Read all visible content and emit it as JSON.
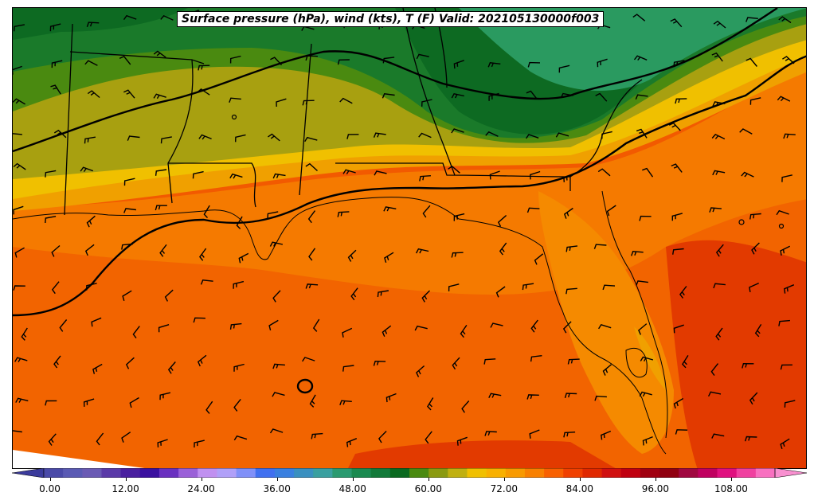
{
  "title": "Surface pressure (hPa), wind (kts), T (F) Valid: 202105130000f003",
  "colorbar": {
    "tick_labels": [
      "0.00",
      "12.00",
      "24.00",
      "36.00",
      "48.00",
      "60.00",
      "72.00",
      "84.00",
      "96.00",
      "108.00"
    ],
    "colors": [
      "#3b3b9c",
      "#4a4aa8",
      "#5a5ab4",
      "#6a5ab4",
      "#5a3aa8",
      "#4a20a0",
      "#3a10a0",
      "#6a30c0",
      "#9a60d8",
      "#c090f0",
      "#b0a0f8",
      "#8090f8",
      "#4070f0",
      "#3a80e0",
      "#3a90c0",
      "#3aa0a0",
      "#2a9a70",
      "#1a8a50",
      "#127a3a",
      "#0a6a20",
      "#4a8a10",
      "#8a9a10",
      "#c0b010",
      "#f0c000",
      "#f8b000",
      "#f89a00",
      "#f88000",
      "#f86000",
      "#f04000",
      "#e02800",
      "#d01010",
      "#c00010",
      "#a00010",
      "#900010",
      "#a00840",
      "#c00060",
      "#e01080",
      "#f040a0",
      "#f870c0",
      "#f890d0"
    ],
    "vmin": -6,
    "vmax": 120
  },
  "map": {
    "features": [
      "temperature-fill",
      "isobars",
      "state-borders",
      "coastline",
      "wind-barbs"
    ],
    "isobar_color": "#000000",
    "land_low_color": "#0a6a20",
    "gulf_color": "#f86000"
  }
}
